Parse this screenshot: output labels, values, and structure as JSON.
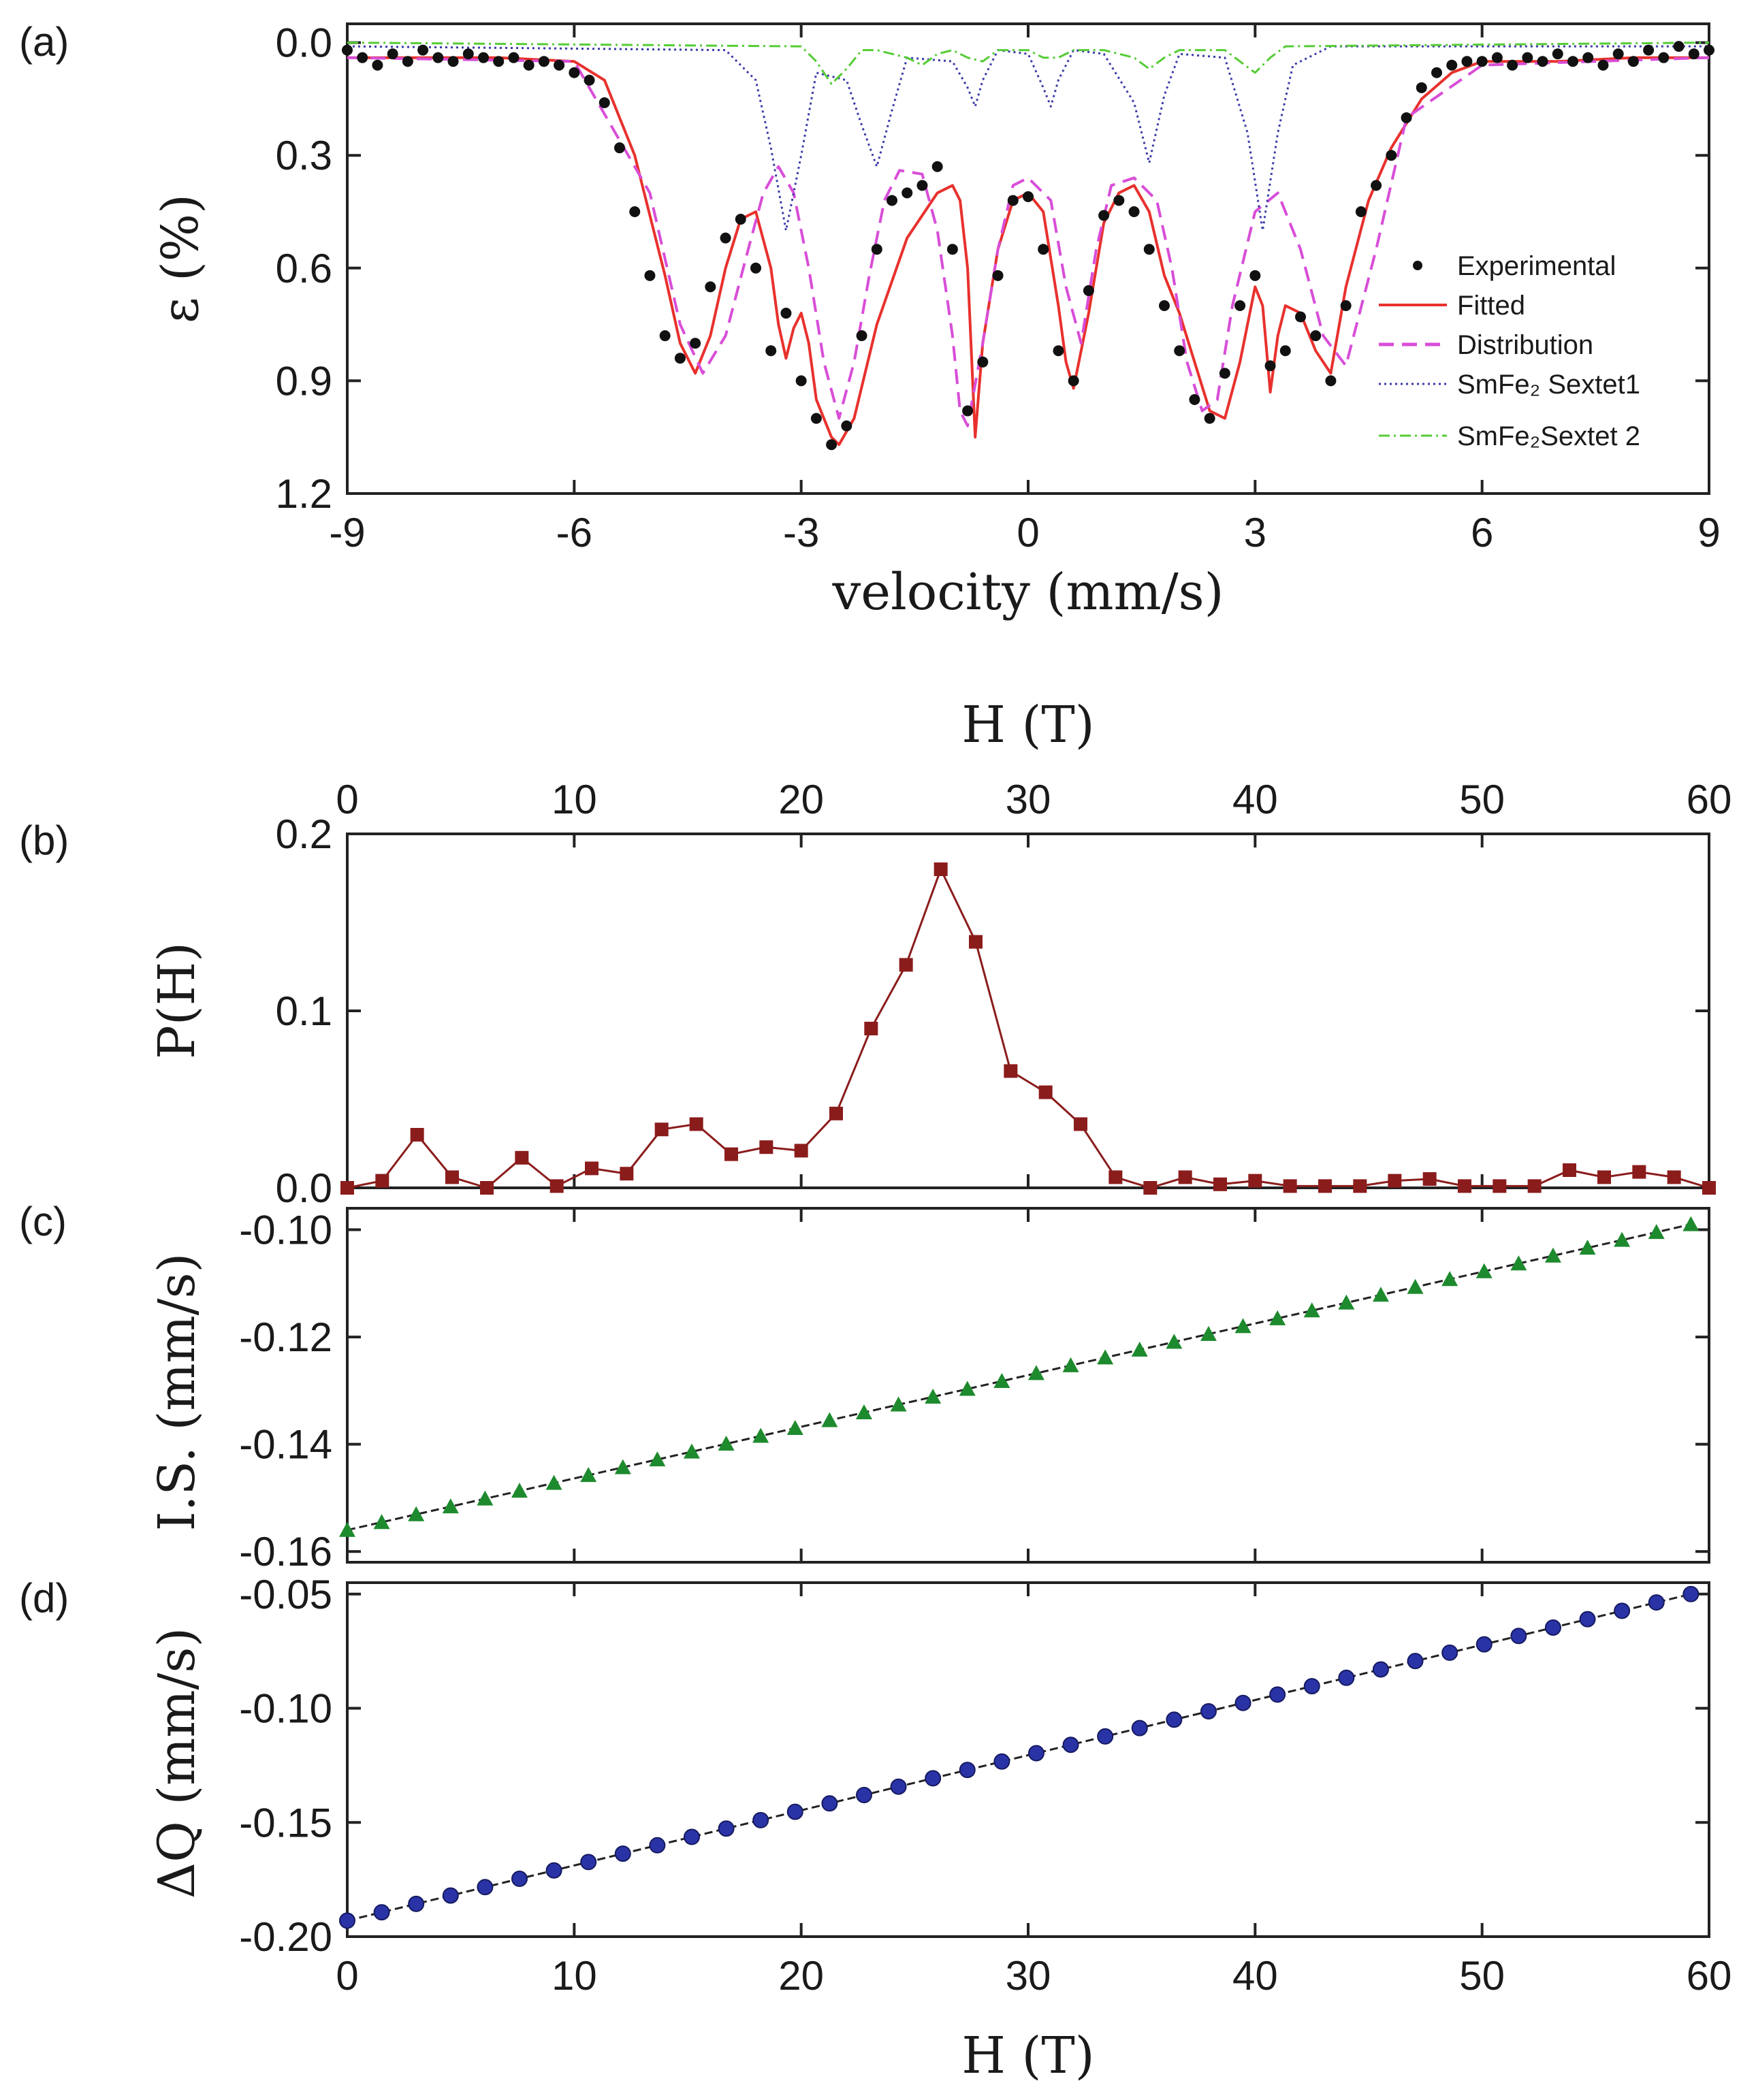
{
  "chart_data": [
    {
      "id": "a",
      "panel_label": "(a)",
      "type": "line",
      "xlabel": "velocity (mm/s)",
      "ylabel": "ε (%)",
      "xlim": [
        -9,
        9
      ],
      "ylim": [
        1.2,
        -0.05
      ],
      "y_inverted": true,
      "xticks": [
        "-9",
        "-6",
        "-3",
        "0",
        "3",
        "6",
        "9"
      ],
      "yticks": [
        "0.0",
        "0.3",
        "0.6",
        "0.9",
        "1.2"
      ],
      "legend": [
        "Experimental",
        "Fitted",
        "Distribution",
        "SmFe₂ Sextet1",
        "SmFe₂Sextet 2"
      ],
      "legend_position": "right",
      "series": [
        {
          "name": "Experimental",
          "style": "points",
          "color": "#111111",
          "x": [
            -9.0,
            -8.8,
            -8.6,
            -8.4,
            -8.2,
            -8.0,
            -7.8,
            -7.6,
            -7.4,
            -7.2,
            -7.0,
            -6.8,
            -6.6,
            -6.4,
            -6.2,
            -6.0,
            -5.8,
            -5.6,
            -5.4,
            -5.2,
            -5.0,
            -4.8,
            -4.6,
            -4.4,
            -4.2,
            -4.0,
            -3.8,
            -3.6,
            -3.4,
            -3.2,
            -3.0,
            -2.8,
            -2.6,
            -2.4,
            -2.2,
            -2.0,
            -1.8,
            -1.6,
            -1.4,
            -1.2,
            -1.0,
            -0.8,
            -0.6,
            -0.4,
            -0.2,
            0.0,
            0.2,
            0.4,
            0.6,
            0.8,
            1.0,
            1.2,
            1.4,
            1.6,
            1.8,
            2.0,
            2.2,
            2.4,
            2.6,
            2.8,
            3.0,
            3.2,
            3.4,
            3.6,
            3.8,
            4.0,
            4.2,
            4.4,
            4.6,
            4.8,
            5.0,
            5.2,
            5.4,
            5.6,
            5.8,
            6.0,
            6.2,
            6.4,
            6.6,
            6.8,
            7.0,
            7.2,
            7.4,
            7.6,
            7.8,
            8.0,
            8.2,
            8.4,
            8.6,
            8.8,
            9.0
          ],
          "y": [
            0.02,
            0.04,
            0.06,
            0.03,
            0.05,
            0.02,
            0.04,
            0.05,
            0.03,
            0.04,
            0.05,
            0.04,
            0.06,
            0.05,
            0.06,
            0.08,
            0.1,
            0.16,
            0.28,
            0.45,
            0.62,
            0.78,
            0.84,
            0.8,
            0.65,
            0.52,
            0.47,
            0.6,
            0.82,
            0.72,
            0.9,
            1.0,
            1.07,
            1.02,
            0.78,
            0.55,
            0.42,
            0.4,
            0.38,
            0.33,
            0.55,
            0.98,
            0.85,
            0.62,
            0.42,
            0.41,
            0.55,
            0.82,
            0.9,
            0.66,
            0.46,
            0.42,
            0.45,
            0.55,
            0.7,
            0.82,
            0.95,
            1.0,
            0.88,
            0.7,
            0.62,
            0.86,
            0.82,
            0.73,
            0.78,
            0.9,
            0.7,
            0.45,
            0.38,
            0.3,
            0.2,
            0.12,
            0.08,
            0.06,
            0.05,
            0.05,
            0.04,
            0.06,
            0.04,
            0.05,
            0.03,
            0.05,
            0.04,
            0.06,
            0.03,
            0.05,
            0.02,
            0.04,
            0.01,
            0.03,
            0.02
          ]
        },
        {
          "name": "Fitted",
          "style": "solid",
          "color": "#e8312d",
          "x": [
            -9.0,
            -8.0,
            -7.0,
            -6.0,
            -5.6,
            -5.2,
            -4.8,
            -4.6,
            -4.4,
            -4.2,
            -4.0,
            -3.8,
            -3.6,
            -3.4,
            -3.3,
            -3.2,
            -3.1,
            -3.0,
            -2.9,
            -2.8,
            -2.6,
            -2.5,
            -2.3,
            -2.0,
            -1.6,
            -1.2,
            -1.0,
            -0.9,
            -0.8,
            -0.7,
            -0.6,
            -0.4,
            -0.2,
            0.0,
            0.2,
            0.4,
            0.5,
            0.6,
            0.8,
            1.0,
            1.2,
            1.4,
            1.6,
            1.8,
            2.0,
            2.2,
            2.4,
            2.6,
            2.8,
            3.0,
            3.1,
            3.2,
            3.3,
            3.4,
            3.6,
            3.8,
            4.0,
            4.2,
            4.5,
            4.8,
            5.2,
            5.6,
            6.0,
            7.0,
            8.0,
            9.0
          ],
          "y": [
            0.04,
            0.04,
            0.04,
            0.05,
            0.1,
            0.3,
            0.62,
            0.8,
            0.88,
            0.78,
            0.6,
            0.47,
            0.45,
            0.6,
            0.75,
            0.84,
            0.76,
            0.72,
            0.8,
            0.95,
            1.05,
            1.07,
            1.0,
            0.75,
            0.52,
            0.4,
            0.38,
            0.42,
            0.6,
            1.05,
            0.8,
            0.55,
            0.42,
            0.4,
            0.45,
            0.7,
            0.85,
            0.92,
            0.72,
            0.48,
            0.4,
            0.38,
            0.45,
            0.62,
            0.72,
            0.85,
            0.98,
            1.0,
            0.85,
            0.65,
            0.7,
            0.93,
            0.78,
            0.7,
            0.72,
            0.82,
            0.88,
            0.65,
            0.42,
            0.28,
            0.15,
            0.08,
            0.05,
            0.05,
            0.04,
            0.04
          ]
        },
        {
          "name": "Distribution",
          "style": "dashed",
          "color": "#d84ed8",
          "x": [
            -9.0,
            -6.0,
            -5.0,
            -4.6,
            -4.3,
            -4.0,
            -3.7,
            -3.5,
            -3.3,
            -3.1,
            -2.9,
            -2.7,
            -2.5,
            -2.3,
            -2.1,
            -1.9,
            -1.7,
            -1.4,
            -1.2,
            -1.0,
            -0.9,
            -0.8,
            -0.6,
            -0.4,
            -0.2,
            0.0,
            0.3,
            0.5,
            0.7,
            0.9,
            1.1,
            1.4,
            1.7,
            1.9,
            2.1,
            2.3,
            2.5,
            2.7,
            3.0,
            3.3,
            3.6,
            3.9,
            4.2,
            4.6,
            5.0,
            6.0,
            9.0
          ],
          "y": [
            0.04,
            0.05,
            0.4,
            0.75,
            0.88,
            0.78,
            0.55,
            0.4,
            0.33,
            0.4,
            0.6,
            0.85,
            1.0,
            0.85,
            0.62,
            0.42,
            0.34,
            0.35,
            0.5,
            0.78,
            0.98,
            1.02,
            0.8,
            0.55,
            0.38,
            0.36,
            0.42,
            0.65,
            0.8,
            0.55,
            0.38,
            0.36,
            0.42,
            0.6,
            0.85,
            0.98,
            0.95,
            0.7,
            0.45,
            0.4,
            0.55,
            0.78,
            0.86,
            0.55,
            0.2,
            0.06,
            0.04
          ]
        },
        {
          "name": "SmFe₂ Sextet1",
          "style": "dotted",
          "color": "#3a3aa8",
          "x": [
            -9.0,
            -4.0,
            -3.6,
            -3.4,
            -3.2,
            -3.0,
            -2.8,
            -2.4,
            -2.2,
            -2.0,
            -1.8,
            -1.6,
            -1.0,
            -0.8,
            -0.7,
            -0.6,
            -0.4,
            0.0,
            0.2,
            0.3,
            0.4,
            0.6,
            1.0,
            1.4,
            1.6,
            1.8,
            2.0,
            2.6,
            2.9,
            3.1,
            3.3,
            3.5,
            4.0,
            9.0
          ],
          "y": [
            0.01,
            0.02,
            0.1,
            0.28,
            0.5,
            0.3,
            0.08,
            0.1,
            0.22,
            0.33,
            0.18,
            0.04,
            0.05,
            0.12,
            0.17,
            0.1,
            0.02,
            0.03,
            0.12,
            0.17,
            0.1,
            0.02,
            0.03,
            0.16,
            0.32,
            0.14,
            0.03,
            0.04,
            0.24,
            0.5,
            0.24,
            0.06,
            0.01,
            0.01
          ]
        },
        {
          "name": "SmFe₂Sextet 2",
          "style": "dashdot",
          "color": "#55cc35",
          "x": [
            -9.0,
            -3.0,
            -2.8,
            -2.6,
            -2.4,
            -2.2,
            -2.0,
            -1.6,
            -1.4,
            -1.2,
            -1.0,
            -0.8,
            -0.6,
            -0.4,
            0.0,
            0.2,
            0.4,
            0.6,
            1.0,
            1.4,
            1.6,
            1.8,
            2.0,
            2.6,
            2.8,
            3.0,
            3.2,
            3.4,
            9.0
          ],
          "y": [
            0.0,
            0.01,
            0.05,
            0.11,
            0.07,
            0.02,
            0.02,
            0.04,
            0.06,
            0.03,
            0.02,
            0.04,
            0.05,
            0.02,
            0.02,
            0.04,
            0.04,
            0.02,
            0.02,
            0.04,
            0.07,
            0.04,
            0.02,
            0.02,
            0.05,
            0.08,
            0.04,
            0.01,
            0.0
          ]
        }
      ]
    },
    {
      "id": "b",
      "panel_label": "(b)",
      "type": "line",
      "xlabel": "H (T)",
      "ylabel": "P(H)",
      "xlim": [
        0,
        60
      ],
      "ylim": [
        0.0,
        0.2
      ],
      "xticks": [
        "0",
        "10",
        "20",
        "30",
        "40",
        "50",
        "60"
      ],
      "yticks": [
        "0.0",
        "0.1",
        "0.2"
      ],
      "series": [
        {
          "name": "P(H)",
          "style": "line-square",
          "color": "#8b1c1c",
          "x": [
            0.0,
            1.54,
            3.08,
            4.62,
            6.15,
            7.69,
            9.23,
            10.77,
            12.31,
            13.85,
            15.38,
            16.92,
            18.46,
            20.0,
            21.54,
            23.08,
            24.62,
            26.15,
            27.69,
            29.23,
            30.77,
            32.31,
            33.85,
            35.38,
            36.92,
            38.46,
            40.0,
            41.54,
            43.08,
            44.62,
            46.15,
            47.69,
            49.23,
            50.77,
            52.31,
            53.85,
            55.38,
            56.92,
            58.46,
            60.0
          ],
          "y": [
            0.0,
            0.004,
            0.03,
            0.006,
            0.0,
            0.017,
            0.001,
            0.011,
            0.008,
            0.033,
            0.036,
            0.019,
            0.023,
            0.021,
            0.042,
            0.09,
            0.126,
            0.18,
            0.139,
            0.066,
            0.054,
            0.036,
            0.006,
            0.0,
            0.006,
            0.002,
            0.004,
            0.001,
            0.001,
            0.001,
            0.004,
            0.005,
            0.001,
            0.001,
            0.001,
            0.01,
            0.006,
            0.009,
            0.006,
            0.0
          ]
        }
      ]
    },
    {
      "id": "c",
      "panel_label": "(c)",
      "type": "line",
      "xlabel": "",
      "ylabel": "I.S. (mm/s)",
      "xlim": [
        0,
        60
      ],
      "ylim": [
        -0.162,
        -0.096
      ],
      "yticks": [
        "-0.10",
        "-0.12",
        "-0.14",
        "-0.16"
      ],
      "series": [
        {
          "name": "I.S.",
          "style": "line-triangle",
          "color": "#1e8a2e",
          "y_start": -0.156,
          "y_end": -0.099,
          "count": 40
        }
      ]
    },
    {
      "id": "d",
      "panel_label": "(d)",
      "type": "line",
      "xlabel": "H (T)",
      "ylabel": "ΔQ (mm/s)",
      "xlim": [
        0,
        60
      ],
      "ylim": [
        -0.2,
        -0.045
      ],
      "xticks": [
        "0",
        "10",
        "20",
        "30",
        "40",
        "50",
        "60"
      ],
      "yticks": [
        "-0.05",
        "-0.10",
        "-0.15",
        "-0.20"
      ],
      "series": [
        {
          "name": "ΔQ",
          "style": "line-circle",
          "color": "#2a33a6",
          "y_start": -0.193,
          "y_end": -0.05,
          "count": 40
        }
      ]
    }
  ]
}
